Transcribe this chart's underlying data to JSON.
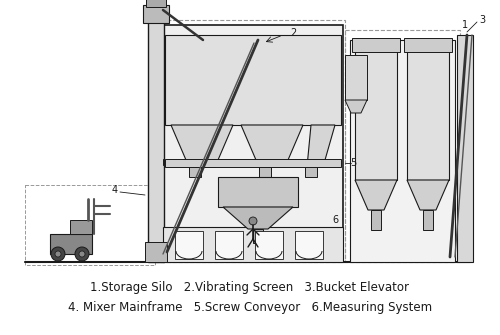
{
  "caption_line1": "1.Storage Silo   2.Vibrating Screen   3.Bucket Elevator",
  "caption_line2": "4. Mixer Mainframe   5.Screw Conveyor   6.Measuring System",
  "bg_color": "#ffffff",
  "lc": "#1a1a1a",
  "dc": "#999999",
  "fc_light": "#e8e8e8",
  "fc_med": "#cccccc",
  "fc_dark": "#aaaaaa",
  "caption_fontsize": 8.5,
  "fig_width": 5.0,
  "fig_height": 3.35,
  "dpi": 100
}
